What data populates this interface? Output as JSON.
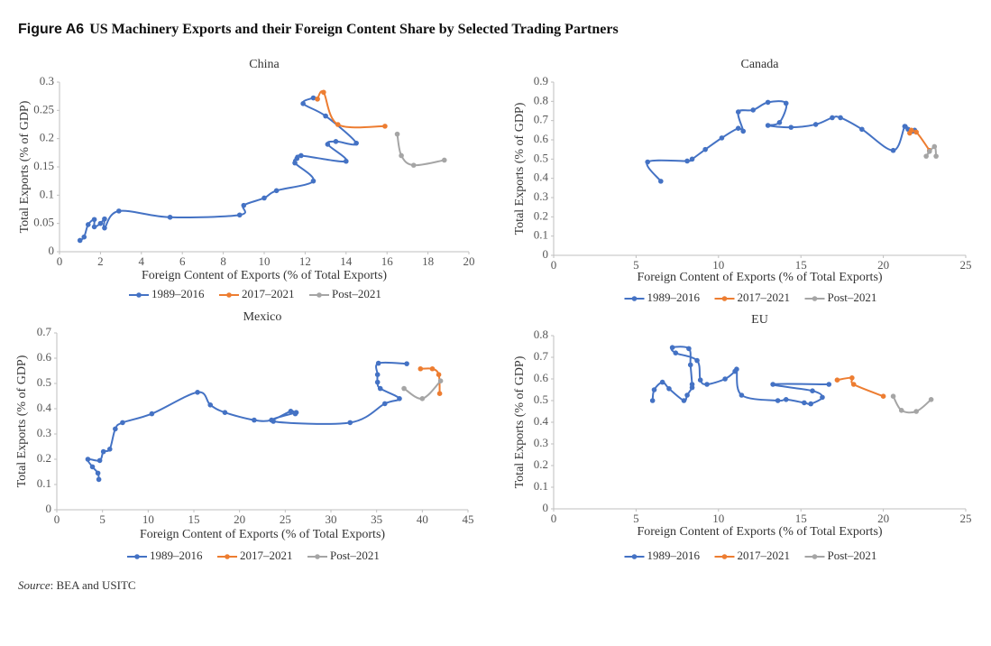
{
  "figure_label": "Figure A6",
  "title": "US Machinery Exports and their Foreign Content Share by Selected Trading Partners",
  "source_label": "Source",
  "source_text": ": BEA and USITC",
  "chart_data": [
    {
      "type": "line",
      "title": "China",
      "x_label": "Foreign Content of Exports (% of Total Exports)",
      "y_label": "Total Exports (% of GDP)",
      "xlim": [
        0,
        20
      ],
      "xticks": [
        0,
        2,
        4,
        6,
        8,
        10,
        12,
        14,
        16,
        18,
        20
      ],
      "ylim": [
        0,
        0.3
      ],
      "yticks": [
        0,
        0.05,
        0.1,
        0.15,
        0.2,
        0.25,
        0.3
      ],
      "series": [
        {
          "name": "1989–2016",
          "color": "#4472c4",
          "x": [
            1.0,
            1.2,
            1.4,
            1.7,
            1.7,
            2.0,
            2.2,
            2.2,
            2.9,
            5.4,
            8.8,
            9.0,
            10.0,
            10.6,
            12.4,
            11.5,
            11.6,
            11.8,
            14.0,
            13.1,
            13.5,
            14.5,
            13.0,
            11.9,
            12.4,
            12.6
          ],
          "values": [
            0.02,
            0.026,
            0.048,
            0.057,
            0.044,
            0.05,
            0.058,
            0.042,
            0.072,
            0.061,
            0.065,
            0.082,
            0.095,
            0.108,
            0.125,
            0.157,
            0.165,
            0.17,
            0.16,
            0.19,
            0.195,
            0.192,
            0.24,
            0.262,
            0.272,
            0.27
          ]
        },
        {
          "name": "2017–2021",
          "color": "#ed7d31",
          "x": [
            12.6,
            12.9,
            13.6,
            15.9
          ],
          "values": [
            0.27,
            0.282,
            0.225,
            0.222
          ]
        },
        {
          "name": "Post–2021",
          "color": "#a5a5a5",
          "x": [
            16.5,
            16.7,
            17.3,
            18.8
          ],
          "values": [
            0.208,
            0.17,
            0.153,
            0.162
          ]
        }
      ]
    },
    {
      "type": "line",
      "title": "Canada",
      "x_label": "Foreign Content of Exports (% of Total Exports)",
      "y_label": "Total Exports (% of GDP)",
      "xlim": [
        0,
        25
      ],
      "xticks": [
        0,
        5,
        10,
        15,
        20,
        25
      ],
      "ylim": [
        0,
        0.9
      ],
      "yticks": [
        0,
        0.1,
        0.2,
        0.3,
        0.4,
        0.5,
        0.6,
        0.7,
        0.8,
        0.9
      ],
      "series": [
        {
          "name": "1989–2016",
          "color": "#4472c4",
          "x": [
            6.5,
            5.7,
            8.1,
            8.4,
            9.2,
            10.2,
            11.2,
            11.5,
            11.2,
            12.1,
            13.0,
            14.1,
            13.7,
            13.0,
            14.4,
            15.9,
            16.9,
            17.4,
            18.7,
            20.6,
            21.3,
            21.5,
            21.8,
            21.9
          ],
          "values": [
            0.385,
            0.485,
            0.49,
            0.5,
            0.55,
            0.61,
            0.66,
            0.645,
            0.745,
            0.755,
            0.795,
            0.79,
            0.69,
            0.675,
            0.665,
            0.68,
            0.715,
            0.715,
            0.655,
            0.545,
            0.67,
            0.655,
            0.645,
            0.65
          ]
        },
        {
          "name": "2017–2021",
          "color": "#ed7d31",
          "x": [
            21.7,
            21.6,
            22.0,
            22.8
          ],
          "values": [
            0.65,
            0.635,
            0.64,
            0.545
          ]
        },
        {
          "name": "Post–2021",
          "color": "#a5a5a5",
          "x": [
            22.8,
            22.6,
            23.1,
            23.2
          ],
          "values": [
            0.54,
            0.515,
            0.565,
            0.515
          ]
        }
      ]
    },
    {
      "type": "line",
      "title": "Mexico",
      "x_label": "Foreign Content of Exports (% of Total Exports)",
      "y_label": "Total Exports (% of GDP)",
      "xlim": [
        0,
        45
      ],
      "xticks": [
        0,
        5,
        10,
        15,
        20,
        25,
        30,
        35,
        40,
        45
      ],
      "ylim": [
        0,
        0.7
      ],
      "yticks": [
        0,
        0.1,
        0.2,
        0.3,
        0.4,
        0.5,
        0.6,
        0.7
      ],
      "series": [
        {
          "name": "1989–2016",
          "color": "#4472c4",
          "x": [
            4.6,
            4.5,
            3.9,
            3.4,
            4.7,
            5.1,
            5.8,
            6.4,
            7.2,
            10.4,
            15.4,
            16.8,
            18.4,
            21.6,
            23.5,
            25.6,
            26.1,
            26.2,
            23.7,
            32.1,
            35.9,
            37.5,
            35.4,
            35.1,
            35.1,
            35.2,
            38.3
          ],
          "values": [
            0.12,
            0.145,
            0.17,
            0.2,
            0.195,
            0.23,
            0.24,
            0.32,
            0.345,
            0.38,
            0.465,
            0.415,
            0.385,
            0.355,
            0.355,
            0.39,
            0.38,
            0.385,
            0.35,
            0.345,
            0.42,
            0.44,
            0.48,
            0.505,
            0.535,
            0.58,
            0.578
          ]
        },
        {
          "name": "2017–2021",
          "color": "#ed7d31",
          "x": [
            39.8,
            41.1,
            41.8,
            41.9
          ],
          "values": [
            0.558,
            0.558,
            0.535,
            0.46
          ]
        },
        {
          "name": "Post–2021",
          "color": "#a5a5a5",
          "x": [
            38.0,
            40.0,
            42.0
          ],
          "values": [
            0.48,
            0.44,
            0.51
          ]
        }
      ]
    },
    {
      "type": "line",
      "title": "EU",
      "x_label": "Foreign Content of Exports (% of Total Exports)",
      "y_label": "Total Exports (% of GDP)",
      "xlim": [
        0,
        25
      ],
      "xticks": [
        0,
        5,
        10,
        15,
        20,
        25
      ],
      "ylim": [
        0,
        0.8
      ],
      "yticks": [
        0,
        0.1,
        0.2,
        0.3,
        0.4,
        0.5,
        0.6,
        0.7,
        0.8
      ],
      "series": [
        {
          "name": "1989–2016",
          "color": "#4472c4",
          "x": [
            6.0,
            6.1,
            6.6,
            7.0,
            7.9,
            8.1,
            8.4,
            8.4,
            8.3,
            8.2,
            7.2,
            7.4,
            8.7,
            8.9,
            9.3,
            10.4,
            11.0,
            11.1,
            11.4,
            13.6,
            14.1,
            15.2,
            15.6,
            16.3,
            15.7,
            13.3,
            16.7
          ],
          "values": [
            0.5,
            0.55,
            0.585,
            0.555,
            0.5,
            0.525,
            0.56,
            0.575,
            0.665,
            0.74,
            0.745,
            0.72,
            0.685,
            0.595,
            0.575,
            0.6,
            0.635,
            0.645,
            0.525,
            0.5,
            0.505,
            0.49,
            0.485,
            0.515,
            0.545,
            0.575,
            0.575
          ]
        },
        {
          "name": "2017–2021",
          "color": "#ed7d31",
          "x": [
            17.2,
            18.1,
            18.2,
            20.0
          ],
          "values": [
            0.595,
            0.605,
            0.575,
            0.52
          ]
        },
        {
          "name": "Post–2021",
          "color": "#a5a5a5",
          "x": [
            20.6,
            21.1,
            22.0,
            22.9
          ],
          "values": [
            0.52,
            0.455,
            0.45,
            0.505
          ]
        }
      ]
    }
  ]
}
